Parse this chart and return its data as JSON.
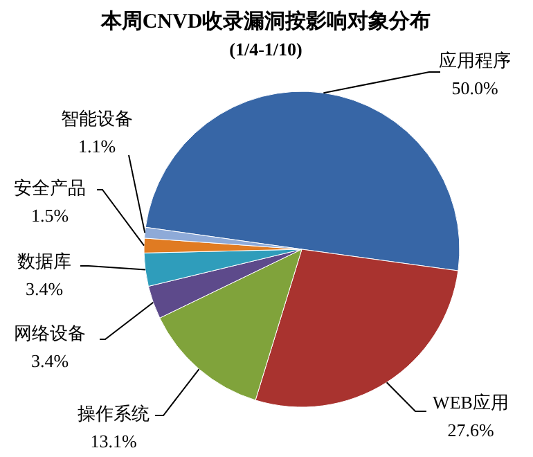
{
  "chart_data": {
    "type": "pie",
    "title": "本周CNVD收录漏洞按影响对象分布",
    "subtitle": "(1/4-1/10)",
    "categories": [
      "应用程序",
      "WEB应用",
      "操作系统",
      "网络设备",
      "数据库",
      "安全产品",
      "智能设备"
    ],
    "values": [
      50.0,
      27.6,
      13.1,
      3.4,
      3.4,
      1.5,
      1.1
    ],
    "value_labels": [
      "50.0%",
      "27.6%",
      "13.1%",
      "3.4%",
      "3.4%",
      "1.5%",
      "1.1%"
    ],
    "colors": [
      "#3766a6",
      "#a9332f",
      "#80a33b",
      "#5d4a8b",
      "#2f9dbb",
      "#e07b22",
      "#8eaad8"
    ]
  }
}
